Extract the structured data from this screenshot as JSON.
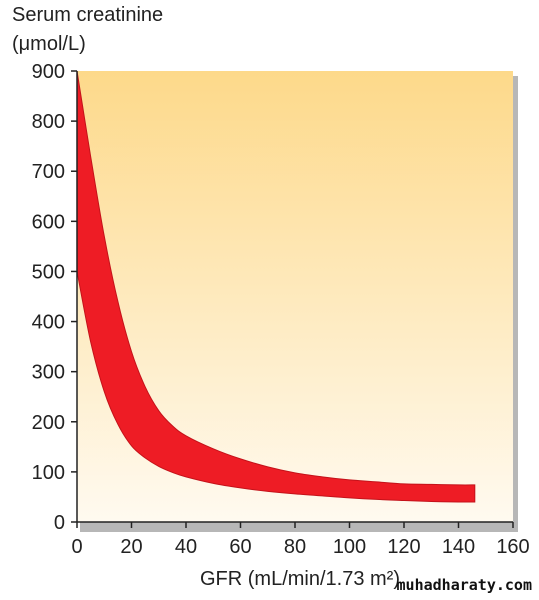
{
  "chart_data": {
    "type": "area",
    "ylabel_line1": "Serum creatinine",
    "ylabel_line2": "(μmol/L)",
    "xlabel": "GFR (mL/min/1.73 m²)",
    "xlim": [
      0,
      160
    ],
    "ylim": [
      0,
      900
    ],
    "xticks": [
      0,
      20,
      40,
      60,
      80,
      100,
      120,
      140,
      160
    ],
    "yticks": [
      0,
      100,
      200,
      300,
      400,
      500,
      600,
      700,
      800,
      900
    ],
    "grid": false,
    "band": {
      "x": [
        0,
        5,
        10,
        15,
        20,
        25,
        30,
        35,
        40,
        50,
        60,
        70,
        80,
        90,
        100,
        110,
        120,
        130,
        140,
        146
      ],
      "upper": [
        900,
        730,
        570,
        440,
        340,
        270,
        222,
        192,
        172,
        146,
        126,
        110,
        98,
        90,
        84,
        80,
        76,
        75,
        74,
        74
      ],
      "lower": [
        500,
        360,
        260,
        195,
        152,
        128,
        111,
        99,
        90,
        77,
        68,
        61,
        56,
        52,
        48,
        45,
        43,
        41,
        40,
        40
      ]
    },
    "colors": {
      "band": "#ee1c25",
      "band_edge": "#c4121a",
      "plot_bg_top": "#fdd98a",
      "plot_bg_bottom": "#fffaf0",
      "axis": "#222222",
      "frame_shadow": "#b7b7b7"
    }
  },
  "watermark": "muhadharaty.com"
}
